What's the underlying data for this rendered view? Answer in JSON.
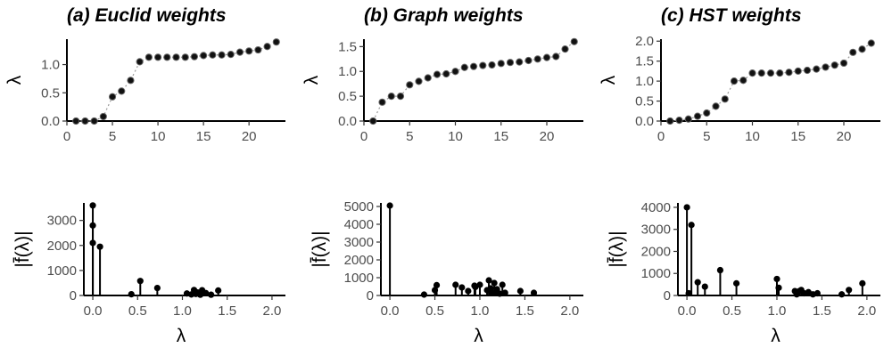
{
  "titles": [
    "(a) Euclid weights",
    "(b) Graph weights",
    "(c) HST weights"
  ],
  "chart_data": [
    {
      "type": "scatter",
      "title": "(a) Euclid weights",
      "xlabel": "",
      "ylabel": "λ",
      "xlim": [
        0,
        24
      ],
      "ylim": [
        0,
        1.45
      ],
      "xticks": [
        0,
        5,
        10,
        15,
        20
      ],
      "yticks": [
        0.0,
        0.5,
        1.0
      ],
      "ytick_labels": [
        "0.0",
        "0.5",
        "1.0"
      ],
      "connect_points": true,
      "x": [
        1,
        2,
        3,
        4,
        5,
        6,
        7,
        8,
        9,
        10,
        11,
        12,
        13,
        14,
        15,
        16,
        17,
        18,
        19,
        20,
        21,
        22,
        23
      ],
      "y": [
        0.0,
        0.0,
        0.0,
        0.08,
        0.43,
        0.53,
        0.72,
        1.05,
        1.13,
        1.13,
        1.13,
        1.13,
        1.13,
        1.14,
        1.16,
        1.17,
        1.17,
        1.18,
        1.22,
        1.24,
        1.26,
        1.32,
        1.4
      ]
    },
    {
      "type": "scatter",
      "title": "(b) Graph weights",
      "xlabel": "",
      "ylabel": "λ",
      "xlim": [
        0,
        24
      ],
      "ylim": [
        0,
        1.65
      ],
      "xticks": [
        0,
        5,
        10,
        15,
        20
      ],
      "yticks": [
        0.0,
        0.5,
        1.0,
        1.5
      ],
      "ytick_labels": [
        "0.0",
        "0.5",
        "1.0",
        "1.5"
      ],
      "connect_points": true,
      "x": [
        1,
        2,
        3,
        4,
        5,
        6,
        7,
        8,
        9,
        10,
        11,
        12,
        13,
        14,
        15,
        16,
        17,
        18,
        19,
        20,
        21,
        22,
        23
      ],
      "y": [
        0.0,
        0.38,
        0.5,
        0.5,
        0.73,
        0.8,
        0.87,
        0.94,
        0.95,
        1.0,
        1.08,
        1.1,
        1.12,
        1.13,
        1.16,
        1.18,
        1.19,
        1.22,
        1.25,
        1.28,
        1.3,
        1.45,
        1.6
      ]
    },
    {
      "type": "scatter",
      "title": "(c) HST weights",
      "xlabel": "",
      "ylabel": "λ",
      "xlim": [
        0,
        24
      ],
      "ylim": [
        0,
        2.05
      ],
      "xticks": [
        0,
        5,
        10,
        15,
        20
      ],
      "yticks": [
        0.0,
        0.5,
        1.0,
        1.5,
        2.0
      ],
      "ytick_labels": [
        "0.0",
        "0.5",
        "1.0",
        "1.5",
        "2.0"
      ],
      "connect_points": true,
      "x": [
        1,
        2,
        3,
        4,
        5,
        6,
        7,
        8,
        9,
        10,
        11,
        12,
        13,
        14,
        15,
        16,
        17,
        18,
        19,
        20,
        21,
        22,
        23
      ],
      "y": [
        0.0,
        0.02,
        0.05,
        0.12,
        0.2,
        0.37,
        0.55,
        1.0,
        1.02,
        1.2,
        1.2,
        1.2,
        1.2,
        1.22,
        1.25,
        1.27,
        1.3,
        1.35,
        1.4,
        1.45,
        1.72,
        1.8,
        1.95
      ]
    },
    {
      "type": "lollipop",
      "xlabel": "λ",
      "ylabel": "|f̄(λ)|",
      "xlim": [
        -0.1,
        2.15
      ],
      "ylim": [
        0,
        3700
      ],
      "xticks": [
        0.0,
        0.5,
        1.0,
        1.5,
        2.0
      ],
      "yticks": [
        0,
        1000,
        2000,
        3000
      ],
      "xtick_labels": [
        "0.0",
        "0.5",
        "1.0",
        "1.5",
        "2.0"
      ],
      "x": [
        0.0,
        0.0,
        0.0,
        0.08,
        0.43,
        0.53,
        0.72,
        1.05,
        1.1,
        1.13,
        1.15,
        1.17,
        1.2,
        1.22,
        1.26,
        1.32,
        1.4
      ],
      "y": [
        3600,
        2800,
        2100,
        1950,
        50,
        580,
        300,
        80,
        40,
        220,
        60,
        120,
        30,
        210,
        100,
        30,
        200
      ]
    },
    {
      "type": "lollipop",
      "xlabel": "λ",
      "ylabel": "|f̄(λ)|",
      "xlim": [
        -0.1,
        2.15
      ],
      "ylim": [
        0,
        5200
      ],
      "xticks": [
        0.0,
        0.5,
        1.0,
        1.5,
        2.0
      ],
      "yticks": [
        0,
        1000,
        2000,
        3000,
        4000,
        5000
      ],
      "xtick_labels": [
        "0.0",
        "0.5",
        "1.0",
        "1.5",
        "2.0"
      ],
      "x": [
        0.0,
        0.38,
        0.5,
        0.52,
        0.73,
        0.8,
        0.87,
        0.94,
        0.95,
        1.0,
        1.08,
        1.1,
        1.12,
        1.13,
        1.16,
        1.18,
        1.19,
        1.22,
        1.25,
        1.28,
        1.45,
        1.6
      ],
      "y": [
        5050,
        50,
        300,
        580,
        600,
        450,
        250,
        550,
        480,
        600,
        300,
        850,
        400,
        150,
        700,
        200,
        350,
        100,
        600,
        150,
        250,
        150
      ]
    },
    {
      "type": "lollipop",
      "xlabel": "λ",
      "ylabel": "|f̄(λ)|",
      "xlim": [
        -0.1,
        2.15
      ],
      "ylim": [
        0,
        4200
      ],
      "xticks": [
        0.0,
        0.5,
        1.0,
        1.5,
        2.0
      ],
      "yticks": [
        0,
        1000,
        2000,
        3000,
        4000
      ],
      "xtick_labels": [
        "0.0",
        "0.5",
        "1.0",
        "1.5",
        "2.0"
      ],
      "x": [
        0.0,
        0.02,
        0.05,
        0.12,
        0.2,
        0.37,
        0.55,
        1.0,
        1.02,
        1.2,
        1.22,
        1.25,
        1.27,
        1.3,
        1.35,
        1.4,
        1.45,
        1.72,
        1.8,
        1.95
      ],
      "y": [
        4000,
        100,
        3200,
        600,
        400,
        1150,
        550,
        750,
        350,
        200,
        50,
        200,
        250,
        100,
        150,
        50,
        100,
        50,
        250,
        550
      ]
    }
  ]
}
